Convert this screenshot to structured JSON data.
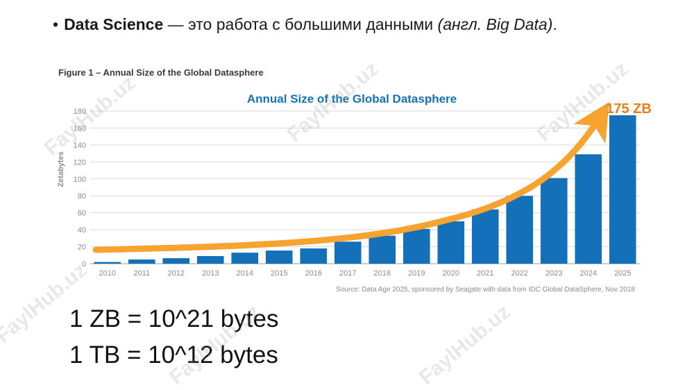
{
  "bullet": {
    "bold": "Data Science",
    "text": " — это работа с большими данными ",
    "italic": "(англ. Big Data)",
    "end": "."
  },
  "figure_caption": "Figure 1 – Annual Size of the Global Datasphere",
  "equations": [
    "1 ZB = 10^21 bytes",
    "1 TB = 10^12 bytes"
  ],
  "watermark": "FaylHub.uz",
  "colors": {
    "bar": "#1470b8",
    "arrow": "#f7a330",
    "title": "#1470b8",
    "callout": "#e87f1a"
  },
  "chart_data": {
    "type": "bar",
    "title": "Annual Size of the Global Datasphere",
    "ylabel": "Zetabytes",
    "xlabel": "",
    "ylim": [
      0,
      180
    ],
    "yticks": [
      0,
      20,
      40,
      60,
      80,
      100,
      120,
      140,
      160,
      180
    ],
    "grid": true,
    "categories": [
      "2010",
      "2011",
      "2012",
      "2013",
      "2014",
      "2015",
      "2016",
      "2017",
      "2018",
      "2019",
      "2020",
      "2021",
      "2022",
      "2023",
      "2024",
      "2025"
    ],
    "values": [
      2,
      5,
      6.5,
      9,
      13,
      15.5,
      18,
      26,
      33,
      41,
      50,
      64,
      80,
      101,
      129,
      175
    ],
    "callout": "175 ZB",
    "source": "Source: Data Age 2025, sponsored by Seagate with data from IDC Global DataSphere, Nov 2018"
  }
}
